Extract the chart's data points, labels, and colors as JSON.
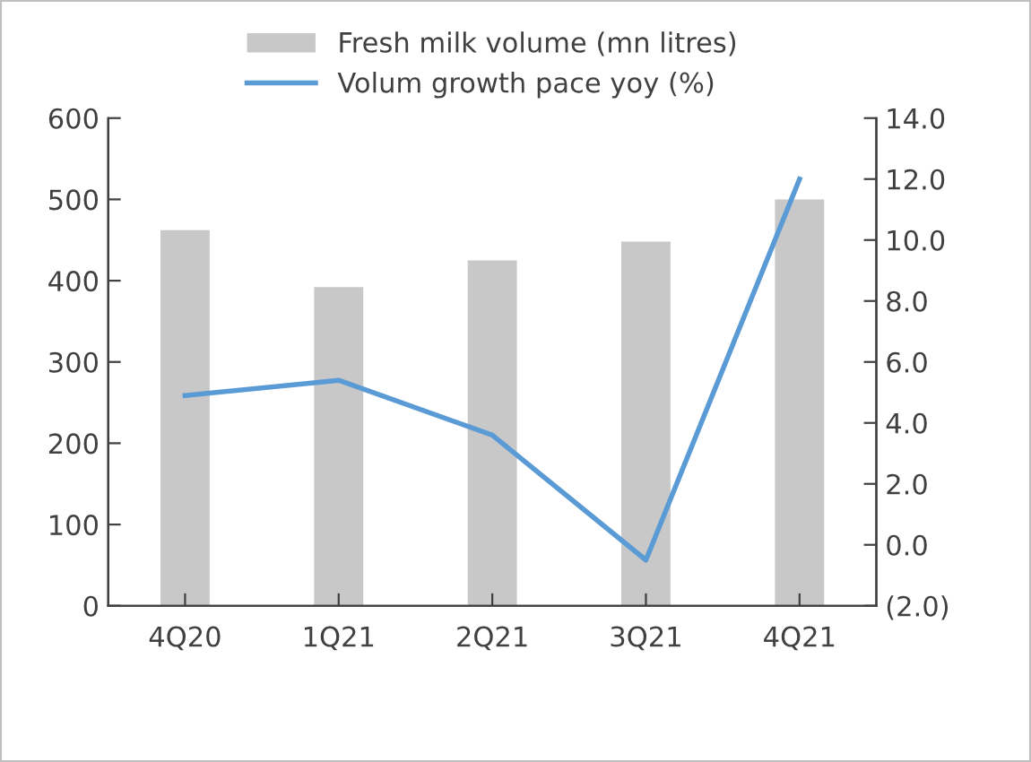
{
  "chart_data": {
    "type": "bar",
    "categories": [
      "4Q20",
      "1Q21",
      "2Q21",
      "3Q21",
      "4Q21"
    ],
    "series": [
      {
        "name": "Fresh milk volume (mn litres)",
        "color": "#c8c8c8",
        "values": [
          462,
          392,
          425,
          448,
          500
        ]
      },
      {
        "name": "Volum growth pace yoy (%)",
        "type": "line",
        "axis": "y2",
        "color": "#5b9bd5",
        "values": [
          4.9,
          5.4,
          3.6,
          -0.5,
          12.0
        ]
      }
    ],
    "ylim": [
      0,
      600
    ],
    "yticks": [
      0,
      100,
      200,
      300,
      400,
      500,
      600
    ],
    "y2lim": [
      -2,
      14
    ],
    "y2ticks": [
      {
        "value": -2,
        "label": "(2.0)"
      },
      {
        "value": 0,
        "label": "0.0"
      },
      {
        "value": 2,
        "label": "2.0"
      },
      {
        "value": 4,
        "label": "4.0"
      },
      {
        "value": 6,
        "label": "6.0"
      },
      {
        "value": 8,
        "label": "8.0"
      },
      {
        "value": 10,
        "label": "10.0"
      },
      {
        "value": 12,
        "label": "12.0"
      },
      {
        "value": 14,
        "label": "14.0"
      }
    ],
    "legend": "top",
    "grid": false,
    "marker": "none",
    "line_style": "solid"
  }
}
